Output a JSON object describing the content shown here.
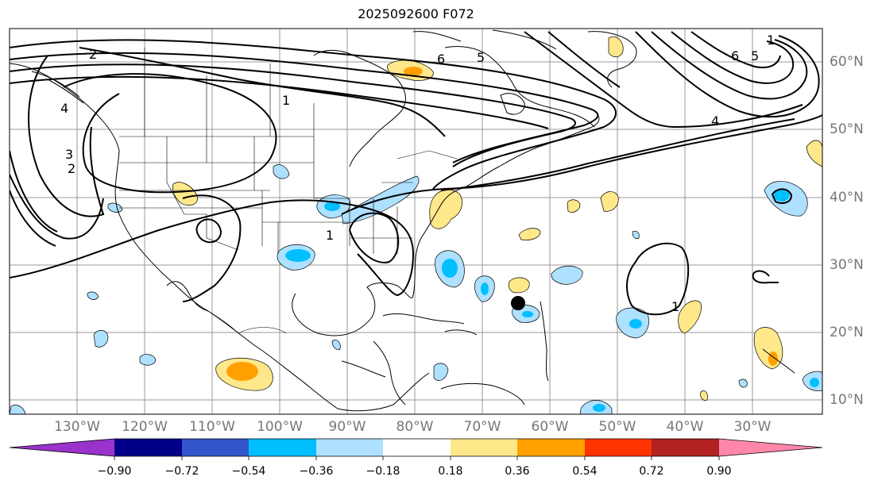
{
  "title": "2025092600 F072",
  "lon_labels": [
    "130°W",
    "120°W",
    "110°W",
    "100°W",
    "90°W",
    "80°W",
    "70°W",
    "60°W",
    "50°W",
    "40°W",
    "30°W"
  ],
  "lat_labels": [
    "60°N",
    "50°N",
    "40°N",
    "30°N",
    "20°N",
    "10°N"
  ],
  "contour_labels": [
    "6",
    "5",
    "4",
    "3",
    "2",
    "1"
  ],
  "colorbar": {
    "extend": "both",
    "tick_labels": [
      "−0.90",
      "−0.72",
      "−0.54",
      "−0.36",
      "−0.18",
      "0.18",
      "0.36",
      "0.54",
      "0.72",
      "0.90"
    ],
    "colors": [
      "#9933cc",
      "#000088",
      "#3355cc",
      "#00bfff",
      "#aee0ff",
      "#ffffff",
      "#ffe88a",
      "#ffa000",
      "#ff3300",
      "#b22222",
      "#ff88aa"
    ]
  },
  "features": {
    "marker": "tropical-cyclone-center-dot",
    "gridlines": true,
    "coastlines": true,
    "state_borders": true
  }
}
